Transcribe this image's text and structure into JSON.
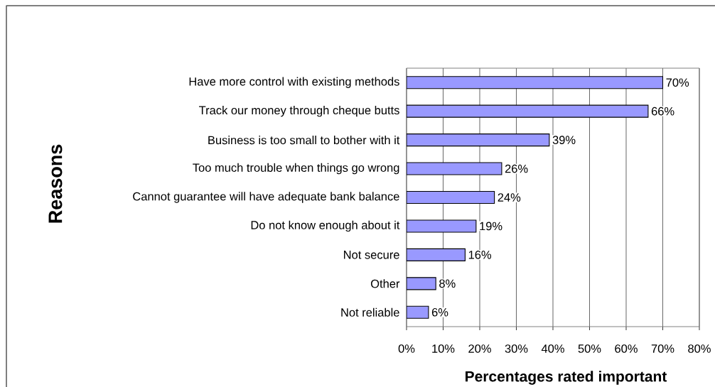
{
  "chart_data": {
    "type": "bar",
    "orientation": "horizontal",
    "categories": [
      "Have more control with existing methods",
      "Track our money through cheque butts",
      "Business is too small to bother with it",
      "Too much trouble when things go wrong",
      "Cannot guarantee will have adequate bank balance",
      "Do not know enough about it",
      "Not secure",
      "Other",
      "Not reliable"
    ],
    "values": [
      70,
      66,
      39,
      26,
      24,
      19,
      16,
      8,
      6
    ],
    "value_labels": [
      "70%",
      "66%",
      "39%",
      "26%",
      "24%",
      "19%",
      "16%",
      "8%",
      "6%"
    ],
    "color": "#9999ff",
    "xlim": [
      0,
      80
    ],
    "xticks": [
      {
        "value": 0,
        "label": "0%"
      },
      {
        "value": 10,
        "label": "10%"
      },
      {
        "value": 20,
        "label": "20%"
      },
      {
        "value": 30,
        "label": "30%"
      },
      {
        "value": 40,
        "label": "40%"
      },
      {
        "value": 50,
        "label": "50%"
      },
      {
        "value": 60,
        "label": "60%"
      },
      {
        "value": 70,
        "label": "70%"
      },
      {
        "value": 80,
        "label": "80%"
      }
    ],
    "xlabel": "Percentages rated important",
    "ylabel": "Reasons",
    "grid": "x"
  }
}
